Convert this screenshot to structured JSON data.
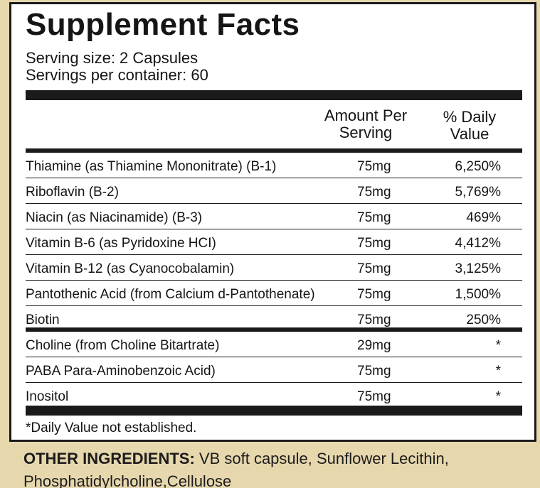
{
  "title": "Supplement Facts",
  "serving_size": "Serving size: 2 Capsules",
  "servings_per_container": "Servings per container: 60",
  "headers": {
    "amount_line1": "Amount Per",
    "amount_line2": "Serving",
    "daily_line1": "% Daily",
    "daily_line2": "Value"
  },
  "rows": [
    {
      "name": "Thiamine (as Thiamine Mononitrate) (B-1)",
      "amount": "75mg",
      "daily_value": "6,250%"
    },
    {
      "name": "Riboflavin (B-2)",
      "amount": "75mg",
      "daily_value": "5,769%"
    },
    {
      "name": "Niacin (as Niacinamide) (B-3)",
      "amount": "75mg",
      "daily_value": "469%"
    },
    {
      "name": "Vitamin B-6 (as Pyridoxine HCI)",
      "amount": "75mg",
      "daily_value": "4,412%"
    },
    {
      "name": "Vitamin B-12 (as Cyanocobalamin)",
      "amount": "75mg",
      "daily_value": "3,125%"
    },
    {
      "name": "Pantothenic Acid (from Calcium d-Pantothenate)",
      "amount": "75mg",
      "daily_value": "1,500%"
    },
    {
      "name": "Biotin",
      "amount": "75mg",
      "daily_value": "250%"
    },
    {
      "name": "Choline (from Choline Bitartrate)",
      "amount": "29mg",
      "daily_value": "*"
    },
    {
      "name": "PABA Para-Aminobenzoic Acid)",
      "amount": "75mg",
      "daily_value": "*"
    },
    {
      "name": "Inositol",
      "amount": "75mg",
      "daily_value": "*"
    }
  ],
  "footnote": "*Daily Value not established.",
  "other_ingredients": {
    "label": "OTHER INGREDIENTS:",
    "text": " VB soft capsule, Sunflower Lecithin, Phosphatidylcholine,Cellulose"
  },
  "colors": {
    "background": "#e7d7ad",
    "panel": "#ffffff",
    "rule": "#1a1a1a"
  }
}
